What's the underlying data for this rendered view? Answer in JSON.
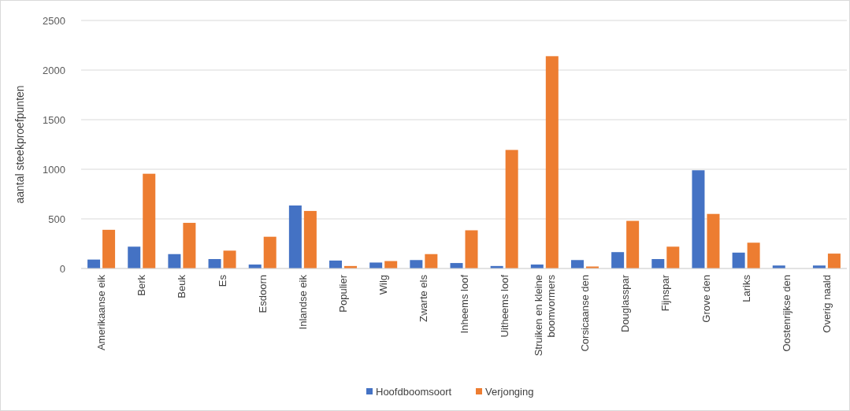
{
  "chart_data": {
    "type": "bar",
    "ylabel": "aantal steekproefpunten",
    "categories": [
      "Amerikaanse eik",
      "Berk",
      "Beuk",
      "Es",
      "Esdoorn",
      "Inlandse eik",
      "Populier",
      "Wilg",
      "Zwarte els",
      "Inheems loof",
      "Uitheems loof",
      "Struiken en kleine boomvormers",
      "Corsicaanse den",
      "Douglasspar",
      "Fijnspar",
      "Grove den",
      "Lariks",
      "Oostenrijkse den",
      "Overig naald"
    ],
    "series": [
      {
        "name": "Hoofdboomsoort",
        "color": "#4472c4",
        "values": [
          90,
          220,
          145,
          95,
          40,
          635,
          80,
          60,
          85,
          55,
          25,
          40,
          85,
          165,
          95,
          990,
          160,
          30,
          30
        ]
      },
      {
        "name": "Verjonging",
        "color": "#ed7d31",
        "values": [
          390,
          955,
          460,
          180,
          320,
          580,
          25,
          75,
          145,
          385,
          1195,
          2140,
          20,
          480,
          220,
          550,
          260,
          0,
          150
        ]
      }
    ],
    "ylim": [
      0,
      2500
    ],
    "yticks": [
      0,
      500,
      1000,
      1500,
      2000,
      2500
    ],
    "grid": "y",
    "legend": "bottom"
  }
}
